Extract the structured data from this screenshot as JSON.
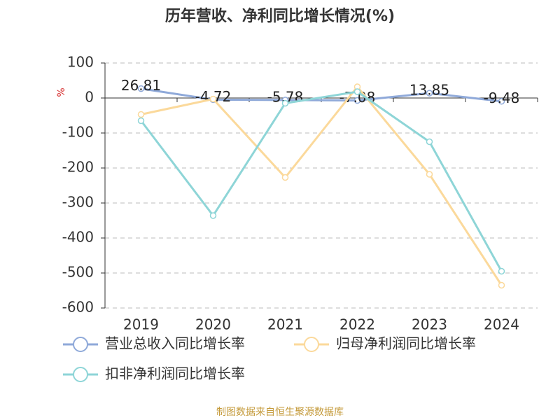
{
  "chart_data": {
    "type": "line",
    "title": "历年营收、净利同比增长情况(%)",
    "y_label": "%",
    "categories": [
      "2019",
      "2020",
      "2021",
      "2022",
      "2023",
      "2024"
    ],
    "series": [
      {
        "name": "营业总收入同比增长率",
        "color": "#8fa9d9",
        "values": [
          26.81,
          -4.72,
          -5.78,
          -7.08,
          13.85,
          -9.48
        ],
        "show_labels": true
      },
      {
        "name": "归母净利润同比增长率",
        "color": "#fbd99b",
        "values": [
          -47,
          -3,
          -227,
          32,
          -218,
          -535
        ],
        "show_labels": false
      },
      {
        "name": "扣非净利润同比增长率",
        "color": "#8ed5d7",
        "values": [
          -65,
          -336,
          -15,
          18,
          -125,
          -495
        ],
        "show_labels": false
      }
    ],
    "ylim": [
      -600,
      100
    ],
    "yticks": [
      100,
      0,
      -100,
      -200,
      -300,
      -400,
      -500,
      -600
    ],
    "grid": true,
    "source": "制图数据来自恒生聚源数据库"
  }
}
